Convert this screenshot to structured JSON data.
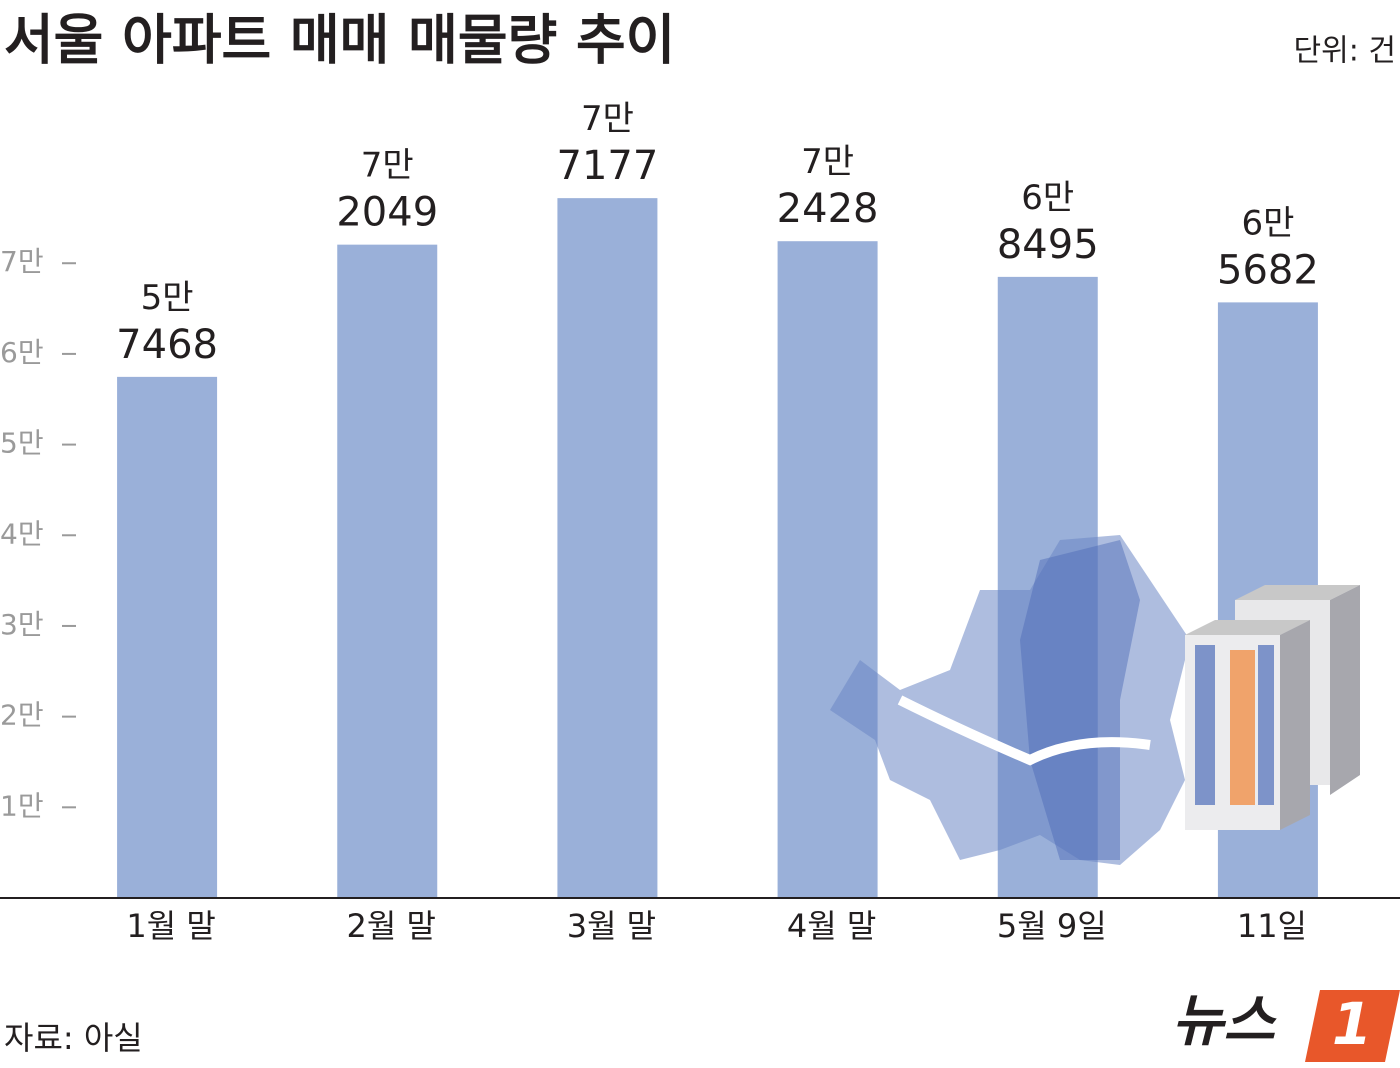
{
  "chart_data": {
    "type": "bar",
    "title": "서울 아파트 매매 매물량 추이",
    "unit": "단위: 건",
    "categories": [
      "1월 말",
      "2월 말",
      "3월 말",
      "4월 말",
      "5월 9일",
      "11일"
    ],
    "values": [
      57468,
      72049,
      77177,
      72428,
      68495,
      65682
    ],
    "value_labels": [
      "5만\n7468",
      "7만\n2049",
      "7만\n7177",
      "7만\n2428",
      "6만\n8495",
      "6만\n5682"
    ],
    "color": "#9ab0d9",
    "ylim": [
      0,
      88000
    ],
    "yticks": [
      {
        "value": 10000,
        "label": "1만"
      },
      {
        "value": 20000,
        "label": "2만"
      },
      {
        "value": 30000,
        "label": "3만"
      },
      {
        "value": 40000,
        "label": "4만"
      },
      {
        "value": 50000,
        "label": "5만"
      },
      {
        "value": 60000,
        "label": "6만"
      },
      {
        "value": 70000,
        "label": "7만"
      }
    ],
    "source": "자료: 아실",
    "logo": {
      "text": "뉴스",
      "mark": "1"
    }
  }
}
